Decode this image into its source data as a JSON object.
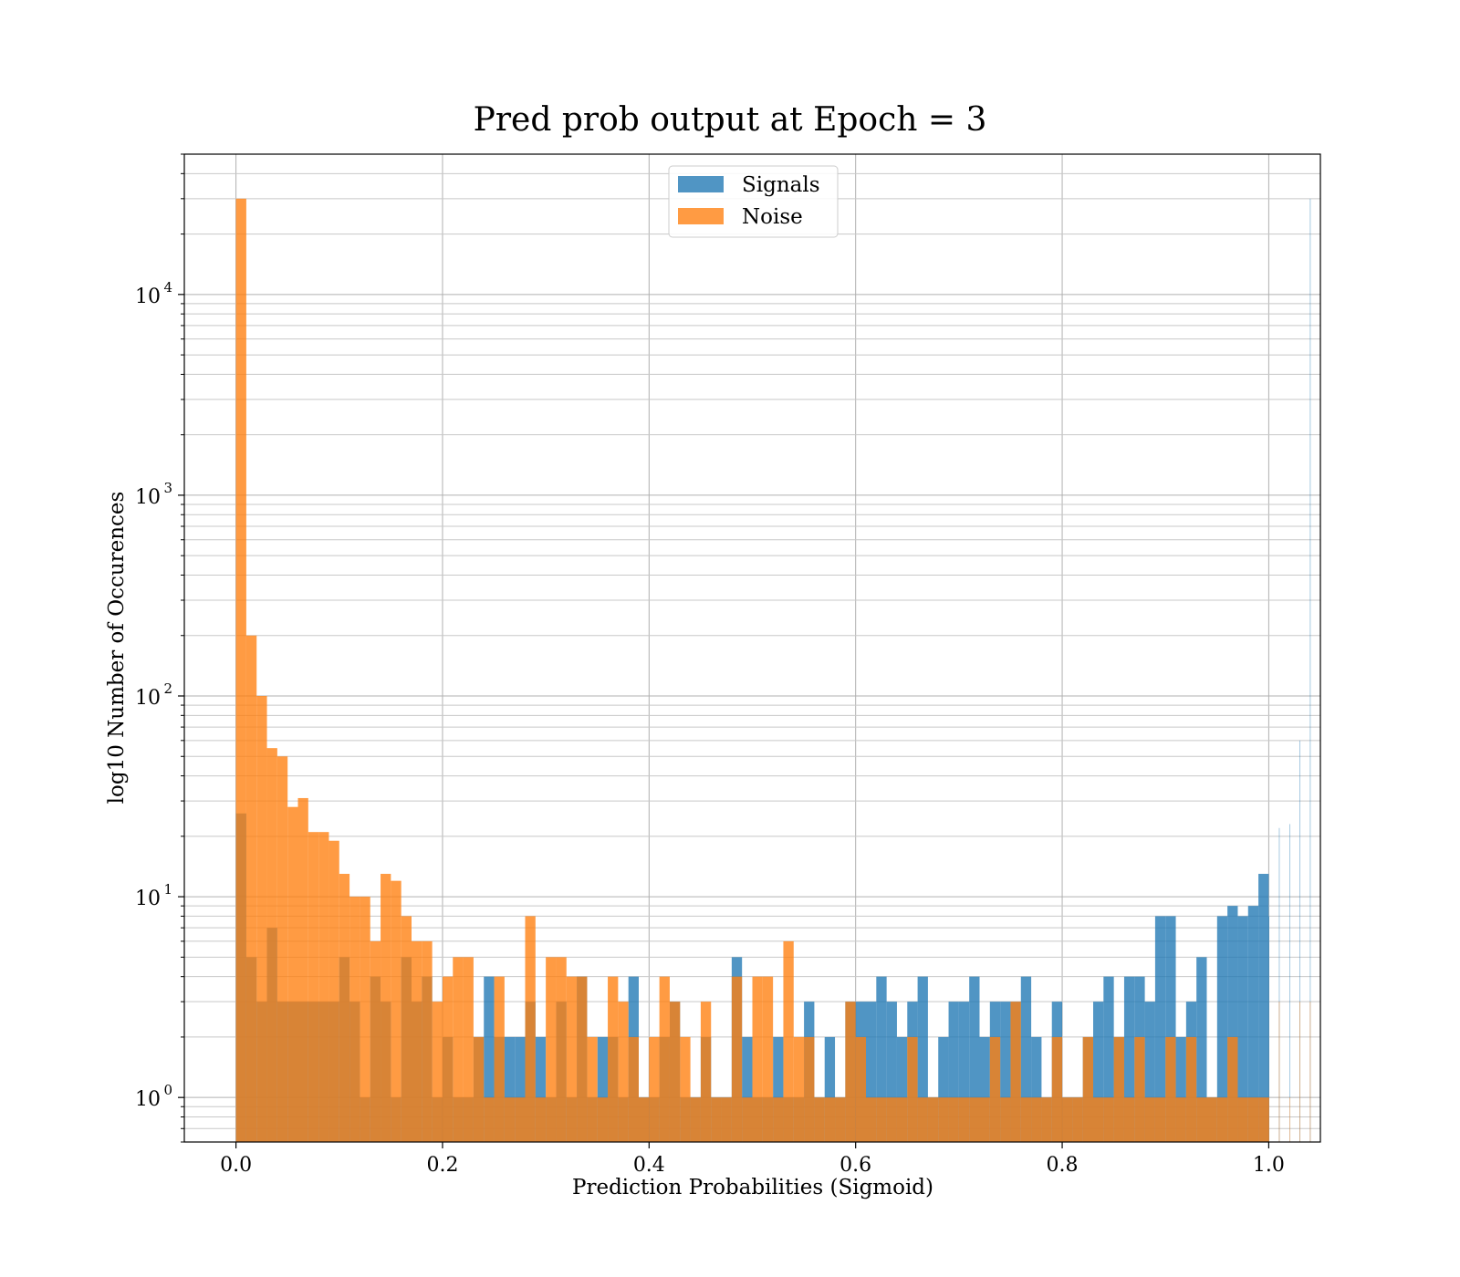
{
  "chart_data": {
    "type": "bar",
    "title": "Pred prob output at Epoch = 3",
    "xlabel": "Prediction Probabilities (Sigmoid)",
    "ylabel": "log10 Number of Occurences",
    "xlim": [
      -0.05,
      1.05
    ],
    "ylim": [
      0.6,
      50000
    ],
    "yscale": "log",
    "grid": true,
    "legend_position": "top-center",
    "bin_width": 0.01,
    "x_ticks": [
      "0.0",
      "0.2",
      "0.4",
      "0.6",
      "0.8",
      "1.0"
    ],
    "x_tick_values": [
      0,
      0.2,
      0.4,
      0.6,
      0.8,
      1.0
    ],
    "y_ticks": [
      {
        "base": "10",
        "exp": "0",
        "value": 1
      },
      {
        "base": "10",
        "exp": "1",
        "value": 10
      },
      {
        "base": "10",
        "exp": "2",
        "value": 100
      },
      {
        "base": "10",
        "exp": "3",
        "value": 1000
      },
      {
        "base": "10",
        "exp": "4",
        "value": 10000
      }
    ],
    "series": [
      {
        "name": "Signals",
        "color": "#1f77b4",
        "values": [
          26,
          5,
          3,
          7,
          3,
          3,
          3,
          3,
          3,
          3,
          5,
          3,
          1,
          4,
          3,
          1,
          5,
          3,
          4,
          1,
          2,
          1,
          1,
          2,
          4,
          2,
          2,
          2,
          3,
          2,
          1,
          3,
          1,
          4,
          1,
          2,
          2,
          1,
          4,
          1,
          1,
          2,
          3,
          1,
          1,
          2,
          1,
          1,
          5,
          2,
          1,
          1,
          2,
          1,
          1,
          3,
          1,
          2,
          1,
          3,
          3,
          3,
          4,
          3,
          2,
          3,
          4,
          1,
          2,
          3,
          3,
          4,
          2,
          3,
          3,
          3,
          4,
          2,
          1,
          3,
          1,
          1,
          2,
          3,
          4,
          2,
          4,
          4,
          3,
          8,
          8,
          2,
          3,
          5,
          1,
          8,
          9,
          8,
          9,
          13,
          8,
          22,
          23,
          60,
          30000
        ]
      },
      {
        "name": "Noise",
        "color": "#ff7f0e",
        "values": [
          30000,
          200,
          100,
          55,
          50,
          28,
          31,
          21,
          21,
          19,
          13,
          10,
          10,
          6,
          13,
          12,
          8,
          6,
          6,
          3,
          4,
          5,
          5,
          2,
          1,
          4,
          1,
          1,
          8,
          1,
          5,
          5,
          4,
          4,
          2,
          1,
          4,
          3,
          2,
          1,
          2,
          4,
          3,
          2,
          1,
          3,
          1,
          1,
          4,
          1,
          4,
          4,
          1,
          6,
          2,
          2,
          1,
          1,
          1,
          3,
          2,
          1,
          1,
          1,
          1,
          2,
          1,
          1,
          1,
          1,
          1,
          1,
          1,
          2,
          1,
          3,
          1,
          1,
          1,
          2,
          1,
          1,
          2,
          1,
          1,
          2,
          1,
          2,
          1,
          1,
          2,
          1,
          2,
          1,
          1,
          1,
          2,
          1,
          1,
          1,
          1,
          3,
          1,
          3,
          3,
          4
        ]
      }
    ]
  }
}
